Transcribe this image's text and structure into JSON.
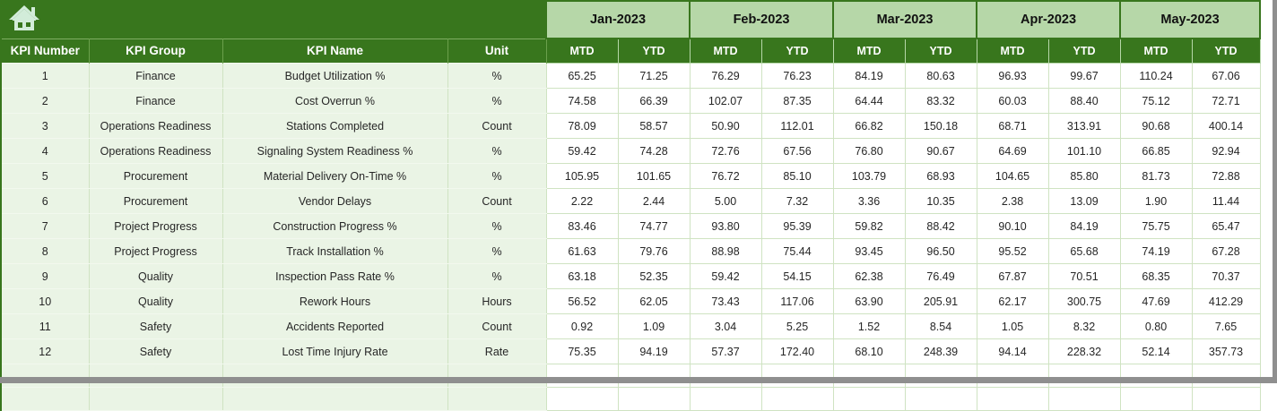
{
  "table": {
    "corner": {
      "home_icon": "home-icon"
    },
    "left_headers": [
      "KPI Number",
      "KPI Group",
      "KPI Name",
      "Unit"
    ],
    "months": [
      "Jan-2023",
      "Feb-2023",
      "Mar-2023",
      "Apr-2023",
      "May-2023"
    ],
    "period_headers": [
      "MTD",
      "YTD"
    ],
    "rows": [
      {
        "kpi_number": "1",
        "kpi_group": "Finance",
        "kpi_name": "Budget Utilization %",
        "unit": "%",
        "values": [
          "65.25",
          "71.25",
          "76.29",
          "76.23",
          "84.19",
          "80.63",
          "96.93",
          "99.67",
          "110.24",
          "67.06"
        ]
      },
      {
        "kpi_number": "2",
        "kpi_group": "Finance",
        "kpi_name": "Cost Overrun %",
        "unit": "%",
        "values": [
          "74.58",
          "66.39",
          "102.07",
          "87.35",
          "64.44",
          "83.32",
          "60.03",
          "88.40",
          "75.12",
          "72.71"
        ]
      },
      {
        "kpi_number": "3",
        "kpi_group": "Operations Readiness",
        "kpi_name": "Stations Completed",
        "unit": "Count",
        "values": [
          "78.09",
          "58.57",
          "50.90",
          "112.01",
          "66.82",
          "150.18",
          "68.71",
          "313.91",
          "90.68",
          "400.14"
        ]
      },
      {
        "kpi_number": "4",
        "kpi_group": "Operations Readiness",
        "kpi_name": "Signaling System Readiness %",
        "unit": "%",
        "values": [
          "59.42",
          "74.28",
          "72.76",
          "67.56",
          "76.80",
          "90.67",
          "64.69",
          "101.10",
          "66.85",
          "92.94"
        ]
      },
      {
        "kpi_number": "5",
        "kpi_group": "Procurement",
        "kpi_name": "Material Delivery On-Time %",
        "unit": "%",
        "values": [
          "105.95",
          "101.65",
          "76.72",
          "85.10",
          "103.79",
          "68.93",
          "104.65",
          "85.80",
          "81.73",
          "72.88"
        ]
      },
      {
        "kpi_number": "6",
        "kpi_group": "Procurement",
        "kpi_name": "Vendor Delays",
        "unit": "Count",
        "values": [
          "2.22",
          "2.44",
          "5.00",
          "7.32",
          "3.36",
          "10.35",
          "2.38",
          "13.09",
          "1.90",
          "11.44"
        ]
      },
      {
        "kpi_number": "7",
        "kpi_group": "Project Progress",
        "kpi_name": "Construction Progress %",
        "unit": "%",
        "values": [
          "83.46",
          "74.77",
          "93.80",
          "95.39",
          "59.82",
          "88.42",
          "90.10",
          "84.19",
          "75.75",
          "65.47"
        ]
      },
      {
        "kpi_number": "8",
        "kpi_group": "Project Progress",
        "kpi_name": "Track Installation %",
        "unit": "%",
        "values": [
          "61.63",
          "79.76",
          "88.98",
          "75.44",
          "93.45",
          "96.50",
          "95.52",
          "65.68",
          "74.19",
          "67.28"
        ]
      },
      {
        "kpi_number": "9",
        "kpi_group": "Quality",
        "kpi_name": "Inspection Pass Rate %",
        "unit": "%",
        "values": [
          "63.18",
          "52.35",
          "59.42",
          "54.15",
          "62.38",
          "76.49",
          "67.87",
          "70.51",
          "68.35",
          "70.37"
        ]
      },
      {
        "kpi_number": "10",
        "kpi_group": "Quality",
        "kpi_name": "Rework Hours",
        "unit": "Hours",
        "values": [
          "56.52",
          "62.05",
          "73.43",
          "117.06",
          "63.90",
          "205.91",
          "62.17",
          "300.75",
          "47.69",
          "412.29"
        ]
      },
      {
        "kpi_number": "11",
        "kpi_group": "Safety",
        "kpi_name": "Accidents Reported",
        "unit": "Count",
        "values": [
          "0.92",
          "1.09",
          "3.04",
          "5.25",
          "1.52",
          "8.54",
          "1.05",
          "8.32",
          "0.80",
          "7.65"
        ]
      },
      {
        "kpi_number": "12",
        "kpi_group": "Safety",
        "kpi_name": "Lost Time Injury Rate",
        "unit": "Rate",
        "values": [
          "75.35",
          "94.19",
          "57.37",
          "172.40",
          "68.10",
          "248.39",
          "94.14",
          "228.32",
          "52.14",
          "357.73"
        ]
      }
    ],
    "empty_row_count": 2
  },
  "colors": {
    "dark_green": "#38761d",
    "light_green": "#b6d7a8",
    "pale_green": "#eaf4e5",
    "grid_green": "#cfe3c2",
    "chrome_gray": "#8f8f8f",
    "icon_pale": "#d2ecd9"
  }
}
